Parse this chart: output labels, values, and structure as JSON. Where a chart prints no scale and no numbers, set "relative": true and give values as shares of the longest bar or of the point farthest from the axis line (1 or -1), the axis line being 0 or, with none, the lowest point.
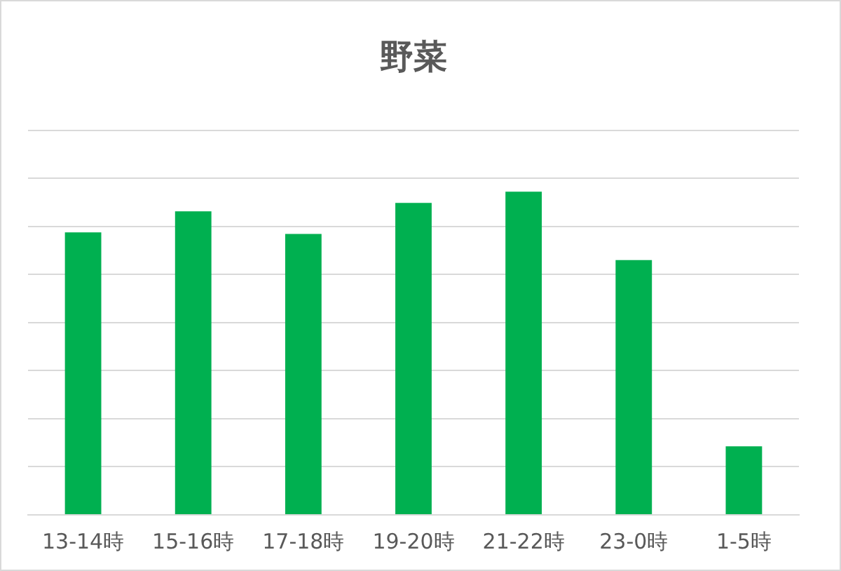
{
  "chart_data": {
    "type": "bar",
    "title": "野菜",
    "relative": true,
    "grid": "y",
    "categories": [
      "13-14時",
      "15-16時",
      "17-18時",
      "19-20時",
      "21-22時",
      "23-0時",
      "1-5時"
    ],
    "color": "#00b050",
    "values": [
      0.874,
      0.939,
      0.869,
      0.965,
      1,
      0.788,
      0.212
    ]
  }
}
